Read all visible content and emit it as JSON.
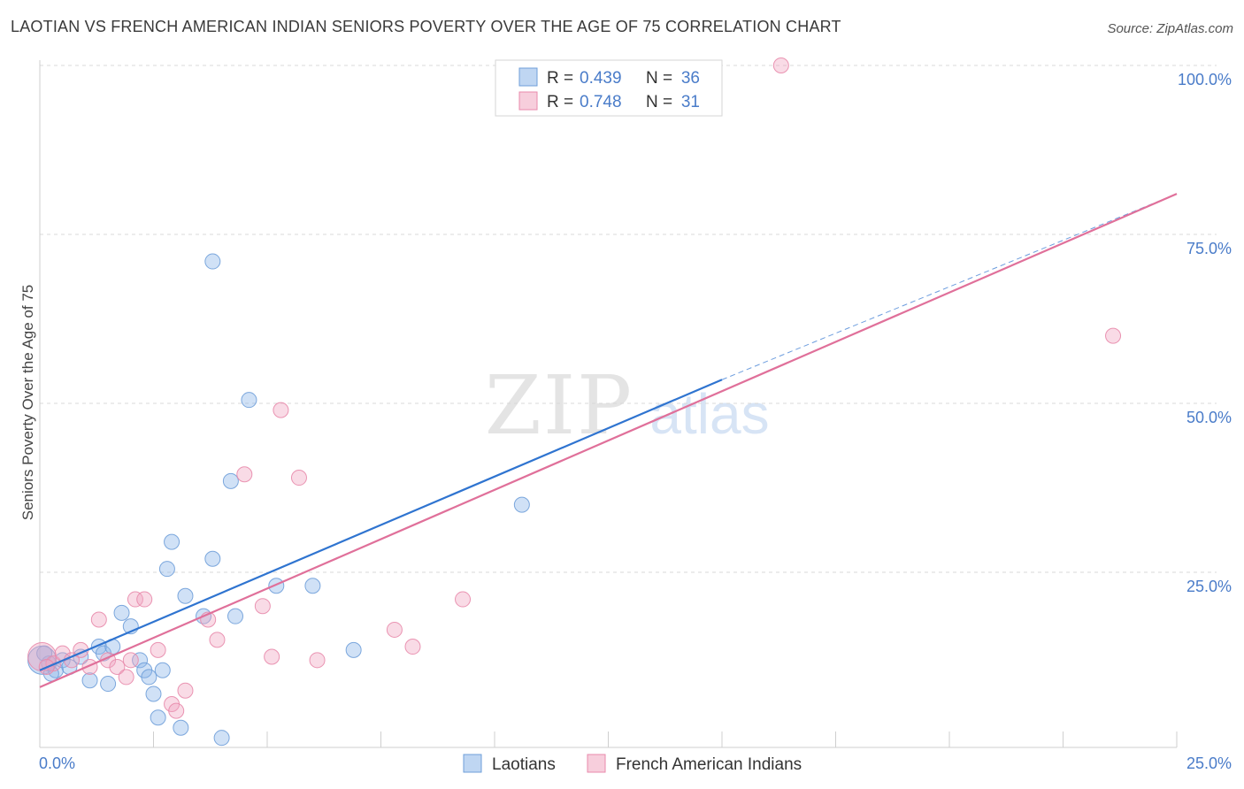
{
  "header": {
    "title": "LAOTIAN VS FRENCH AMERICAN INDIAN SENIORS POVERTY OVER THE AGE OF 75 CORRELATION CHART",
    "source": "Source: ZipAtlas.com"
  },
  "watermark": {
    "zip": "ZIP",
    "atlas": "atlas"
  },
  "colors": {
    "blue": "#8ab4e8",
    "blue_line": "#2f74d0",
    "pink": "#f0a6c0",
    "pink_line": "#e0709a",
    "axis_label": "#4a7cc9",
    "grid": "#d8d8d8"
  },
  "chart_data": {
    "type": "scatter",
    "title": "LAOTIAN VS FRENCH AMERICAN INDIAN SENIORS POVERTY OVER THE AGE OF 75 CORRELATION CHART",
    "xlabel": "",
    "ylabel": "Seniors Poverty Over the Age of 75",
    "xlim": [
      0,
      25
    ],
    "ylim": [
      0,
      100
    ],
    "x_tick_labels": [
      "0.0%",
      "25.0%"
    ],
    "y_tick_labels": [
      "25.0%",
      "50.0%",
      "75.0%",
      "100.0%"
    ],
    "y_ticks": [
      25,
      50,
      75,
      100
    ],
    "legend": {
      "position": "top-center",
      "entries": [
        {
          "r_label": "R =",
          "r_value": "0.439",
          "n_label": "N =",
          "n_value": "36"
        },
        {
          "r_label": "R =",
          "r_value": "0.748",
          "n_label": "N =",
          "n_value": "31"
        }
      ]
    },
    "bottom_legend": [
      "Laotians",
      "French American Indians"
    ],
    "series": [
      {
        "name": "Laotians",
        "color": "blue",
        "trend": {
          "x0": 0,
          "y0": 10.5,
          "x1": 15,
          "y1": 53.5,
          "dash_to_x": 25,
          "dash_to_y": 81
        },
        "points": [
          [
            0.05,
            12.0
          ],
          [
            0.2,
            11.5
          ],
          [
            0.35,
            10.5
          ],
          [
            0.5,
            12.0
          ],
          [
            0.65,
            11.0
          ],
          [
            0.9,
            12.5
          ],
          [
            1.1,
            9.0
          ],
          [
            1.3,
            14.0
          ],
          [
            1.4,
            13.0
          ],
          [
            1.5,
            8.5
          ],
          [
            1.6,
            14.0
          ],
          [
            1.8,
            19.0
          ],
          [
            2.0,
            17.0
          ],
          [
            2.2,
            12.0
          ],
          [
            2.3,
            10.5
          ],
          [
            2.4,
            9.5
          ],
          [
            2.5,
            7.0
          ],
          [
            2.6,
            3.5
          ],
          [
            2.7,
            10.5
          ],
          [
            2.8,
            25.5
          ],
          [
            2.9,
            29.5
          ],
          [
            3.1,
            2.0
          ],
          [
            3.2,
            21.5
          ],
          [
            3.6,
            18.5
          ],
          [
            3.8,
            27.0
          ],
          [
            3.8,
            71.0
          ],
          [
            4.0,
            0.5
          ],
          [
            4.2,
            38.5
          ],
          [
            4.3,
            18.5
          ],
          [
            4.6,
            50.5
          ],
          [
            5.2,
            23.0
          ],
          [
            6.0,
            23.0
          ],
          [
            6.9,
            13.5
          ],
          [
            10.6,
            35.0
          ],
          [
            0.1,
            13.0
          ],
          [
            0.25,
            10.0
          ]
        ]
      },
      {
        "name": "French American Indians",
        "color": "pink",
        "trend": {
          "x0": 0,
          "y0": 8.0,
          "x1": 25,
          "y1": 81
        },
        "points": [
          [
            0.05,
            12.5
          ],
          [
            0.3,
            11.5
          ],
          [
            0.5,
            13.0
          ],
          [
            0.7,
            12.0
          ],
          [
            0.9,
            13.5
          ],
          [
            1.1,
            11.0
          ],
          [
            1.3,
            18.0
          ],
          [
            1.5,
            12.0
          ],
          [
            1.7,
            11.0
          ],
          [
            1.9,
            9.5
          ],
          [
            2.0,
            12.0
          ],
          [
            2.1,
            21.0
          ],
          [
            2.3,
            21.0
          ],
          [
            2.6,
            13.5
          ],
          [
            2.9,
            5.5
          ],
          [
            3.0,
            4.5
          ],
          [
            3.2,
            7.5
          ],
          [
            3.7,
            18.0
          ],
          [
            3.9,
            15.0
          ],
          [
            4.5,
            39.5
          ],
          [
            4.9,
            20.0
          ],
          [
            5.1,
            12.5
          ],
          [
            5.3,
            49.0
          ],
          [
            5.7,
            39.0
          ],
          [
            6.1,
            12.0
          ],
          [
            7.8,
            16.5
          ],
          [
            8.2,
            14.0
          ],
          [
            9.3,
            21.0
          ],
          [
            16.3,
            100.0
          ],
          [
            23.6,
            60.0
          ],
          [
            0.15,
            11.0
          ]
        ]
      }
    ]
  }
}
